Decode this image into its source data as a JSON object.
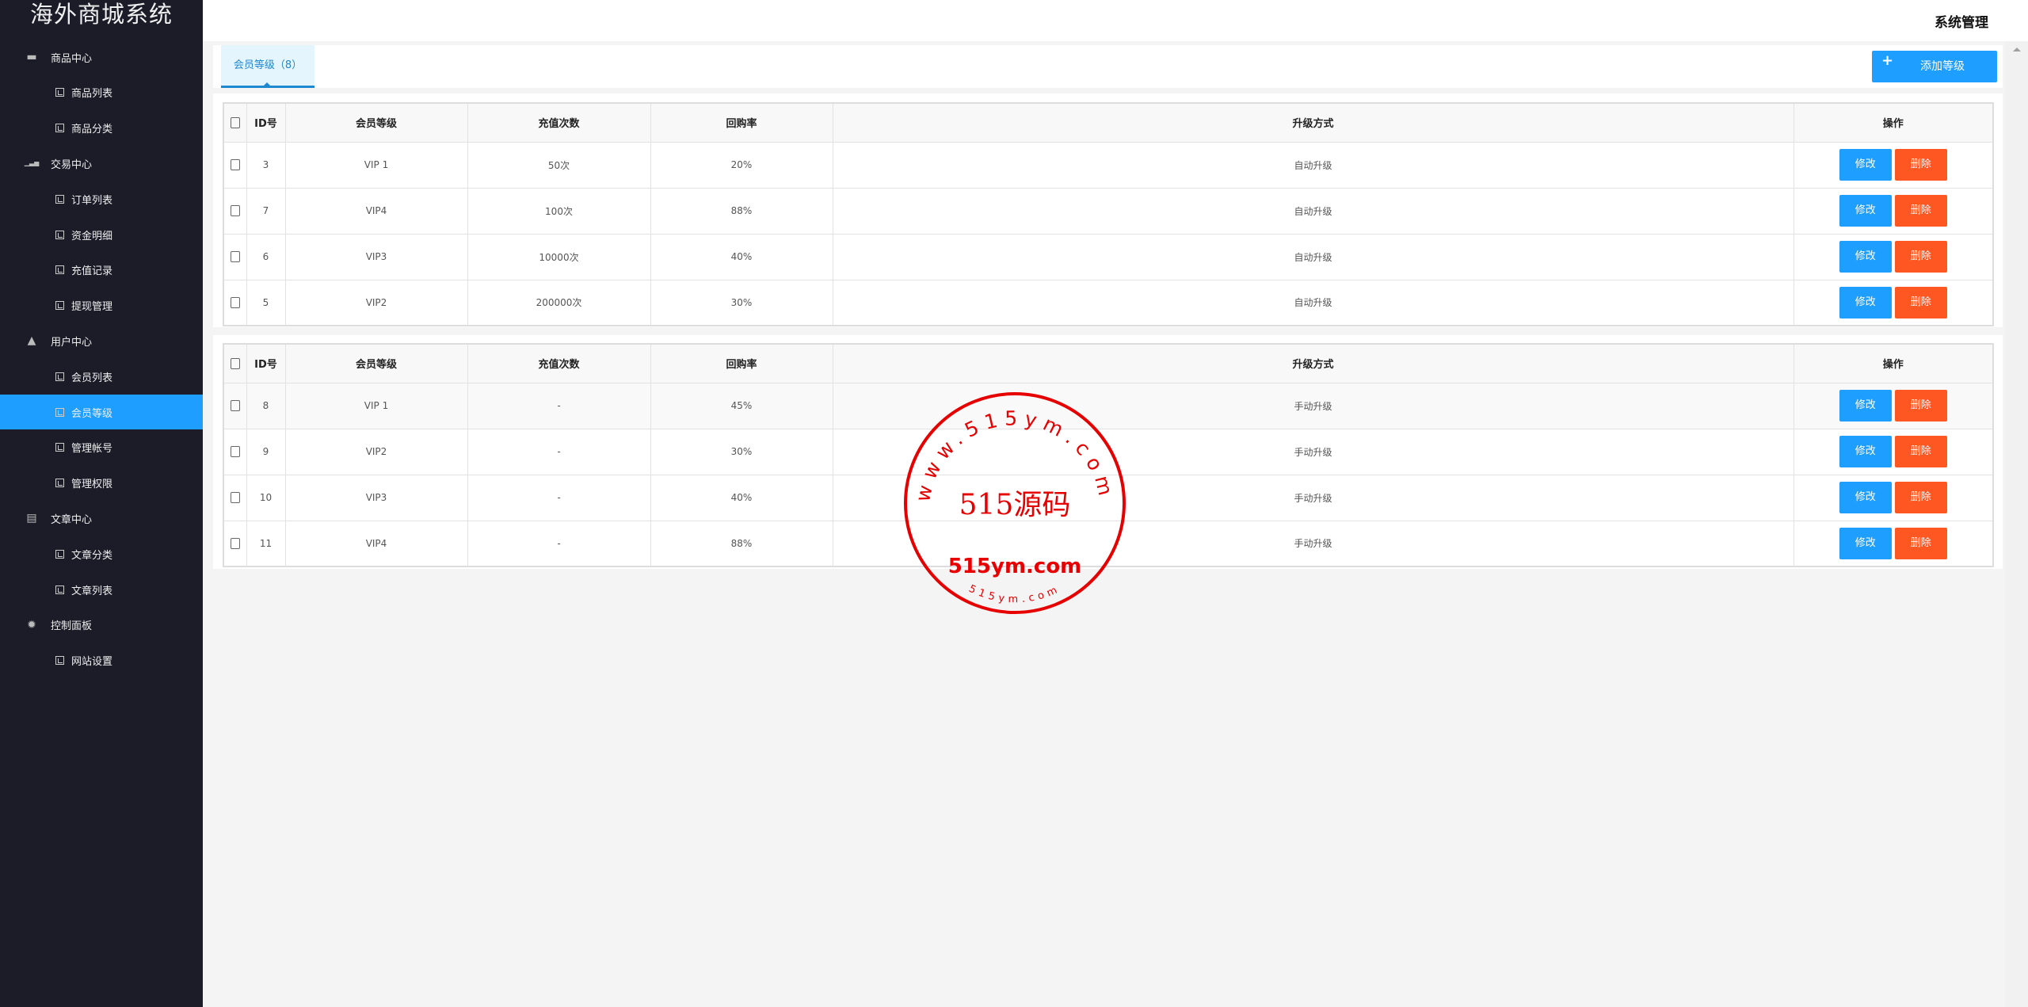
{
  "app_title": "海外商城系统",
  "header": {
    "system_menu": "系统管理"
  },
  "sidebar": {
    "groups": [
      {
        "label": "商品中心",
        "icon": "shopping-bag-icon",
        "items": [
          "商品列表",
          "商品分类"
        ]
      },
      {
        "label": "交易中心",
        "icon": "bar-chart-icon",
        "items": [
          "订单列表",
          "资金明细",
          "充值记录",
          "提现管理"
        ]
      },
      {
        "label": "用户中心",
        "icon": "user-icon",
        "items": [
          "会员列表",
          "会员等级",
          "管理帐号",
          "管理权限"
        ]
      },
      {
        "label": "文章中心",
        "icon": "document-icon",
        "items": [
          "文章分类",
          "文章列表"
        ]
      },
      {
        "label": "控制面板",
        "icon": "gear-icon",
        "items": [
          "网站设置"
        ]
      }
    ],
    "active_item": "会员等级"
  },
  "tabs": [
    {
      "label": "会员等级（8）",
      "active": true
    }
  ],
  "add_button": "添加等级",
  "colors": {
    "sidebar_bg": "#1b1c28",
    "accent": "#1e9fff",
    "danger": "#ff5722",
    "stamp": "#e60000"
  },
  "tables": [
    {
      "columns": [
        "ID号",
        "会员等级",
        "充值次数",
        "回购率",
        "升级方式",
        "操作"
      ],
      "rows": [
        {
          "id": "3",
          "level": "VIP 1",
          "recharge": "50次",
          "rate": "20%",
          "upgrade": "自动升级"
        },
        {
          "id": "7",
          "level": "VIP4",
          "recharge": "100次",
          "rate": "88%",
          "upgrade": "自动升级"
        },
        {
          "id": "6",
          "level": "VIP3",
          "recharge": "10000次",
          "rate": "40%",
          "upgrade": "自动升级"
        },
        {
          "id": "5",
          "level": "VIP2",
          "recharge": "200000次",
          "rate": "30%",
          "upgrade": "自动升级"
        }
      ]
    },
    {
      "columns": [
        "ID号",
        "会员等级",
        "充值次数",
        "回购率",
        "升级方式",
        "操作"
      ],
      "rows": [
        {
          "id": "8",
          "level": "VIP 1",
          "recharge": "-",
          "rate": "45%",
          "upgrade": "手动升级"
        },
        {
          "id": "9",
          "level": "VIP2",
          "recharge": "-",
          "rate": "30%",
          "upgrade": "手动升级"
        },
        {
          "id": "10",
          "level": "VIP3",
          "recharge": "-",
          "rate": "40%",
          "upgrade": "手动升级"
        },
        {
          "id": "11",
          "level": "VIP4",
          "recharge": "-",
          "rate": "88%",
          "upgrade": "手动升级"
        }
      ]
    }
  ],
  "row_actions": {
    "edit": "修改",
    "delete": "删除"
  },
  "watermark_stamp": {
    "arc_top": "www.515ym.com",
    "center": "515源码",
    "middle": "515ym.com",
    "arc_bottom": "515ym.com"
  }
}
